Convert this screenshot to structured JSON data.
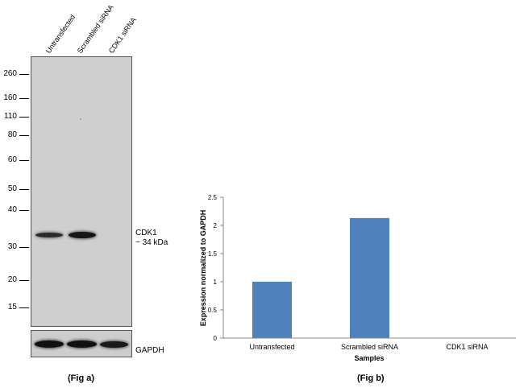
{
  "fig_a": {
    "caption": "(Fig a)",
    "lanes": [
      "Untransfected",
      "Scrambled siRNA",
      "CDK1 siRNA"
    ],
    "mw_markers": [
      "260",
      "160",
      "110",
      "80",
      "60",
      "50",
      "40",
      "30",
      "20",
      "15"
    ],
    "band_label_line1": "CDK1",
    "band_label_line2": "~ 34 kDa",
    "loading_control_label": "GAPDH"
  },
  "fig_b": {
    "caption": "(Fig b)"
  },
  "chart_data": {
    "type": "bar",
    "categories": [
      "Untransfected",
      "Scrambled siRNA",
      "CDK1 siRNA"
    ],
    "values": [
      1.0,
      2.13,
      0.0
    ],
    "title": "",
    "xlabel": "Samples",
    "ylabel": "Expression  normalized to GAPDH",
    "ylim": [
      0,
      2.5
    ],
    "yticks": [
      "0",
      "0.5",
      "1",
      "1.5",
      "2",
      "2.5"
    ],
    "bar_color": "#4f81bd",
    "grid": false
  }
}
